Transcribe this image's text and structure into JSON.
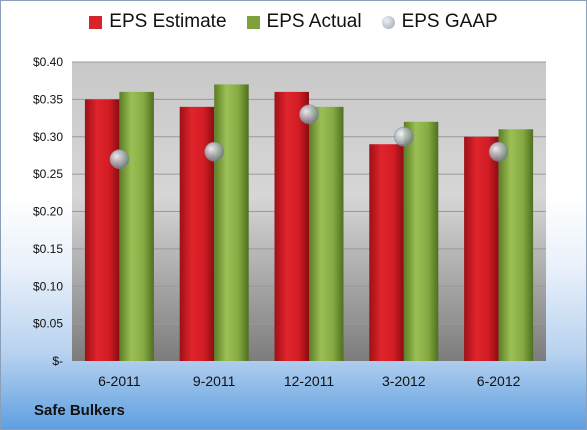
{
  "chart_data": {
    "type": "bar",
    "categories": [
      "6-2011",
      "9-2011",
      "12-2011",
      "3-2012",
      "6-2012"
    ],
    "series": [
      {
        "name": "EPS Estimate",
        "values": [
          0.35,
          0.34,
          0.36,
          0.29,
          0.3
        ],
        "color": "#d8232a",
        "mark": "bar"
      },
      {
        "name": "EPS Actual",
        "values": [
          0.36,
          0.37,
          0.34,
          0.32,
          0.31
        ],
        "color": "#7ea13c",
        "mark": "bar"
      },
      {
        "name": "EPS GAAP",
        "values": [
          0.27,
          0.28,
          0.33,
          0.3,
          0.28
        ],
        "color": "#9aa3ad",
        "mark": "circle"
      }
    ],
    "yticks": [
      "$-",
      "$0.05",
      "$0.10",
      "$0.15",
      "$0.20",
      "$0.25",
      "$0.30",
      "$0.35",
      "$0.40"
    ],
    "ylim": [
      0,
      0.4
    ],
    "grid": true,
    "legend": "top"
  },
  "company": "Safe Bulkers"
}
